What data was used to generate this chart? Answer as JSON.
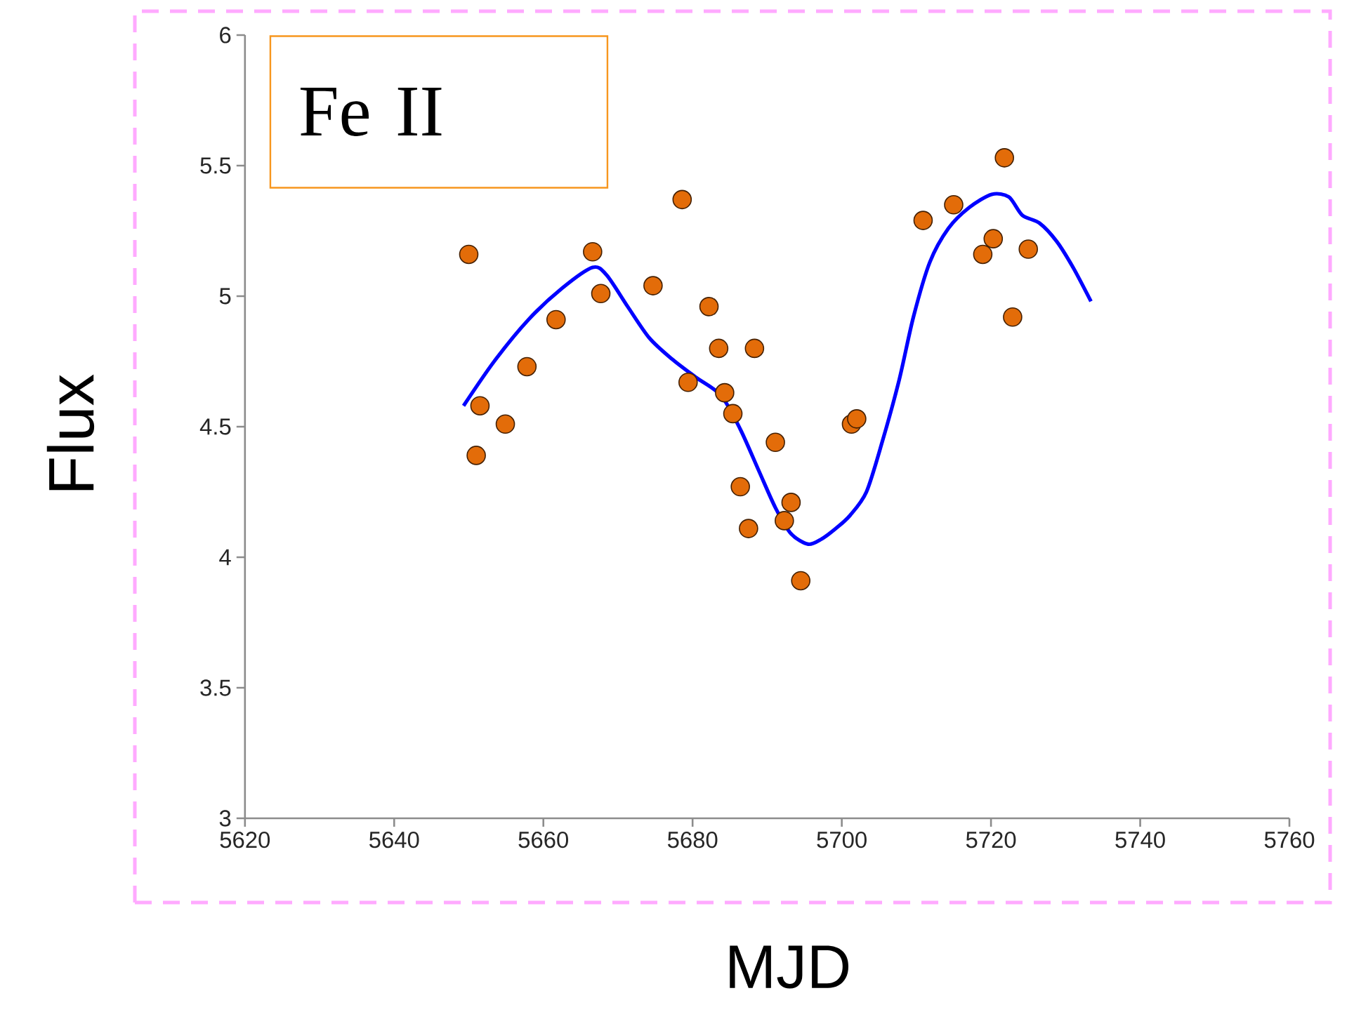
{
  "chart_data": {
    "type": "scatter",
    "xlabel": "MJD",
    "ylabel": "Flux",
    "annotations": [
      "Fe II"
    ],
    "xlim": [
      5620,
      5760
    ],
    "xticks": [
      5620,
      5640,
      5660,
      5680,
      5700,
      5720,
      5740,
      5760
    ],
    "ylim": [
      3,
      6
    ],
    "yticks": [
      3,
      3.5,
      4,
      4.5,
      5,
      5.5,
      6
    ],
    "series": [
      {
        "marker": "circle",
        "color": "#e36c09",
        "x": [
          5650,
          5651.5,
          5651,
          5654.9,
          5657.8,
          5661.7,
          5666.6,
          5667.7,
          5674.7,
          5678.6,
          5679.4,
          5682.2,
          5683.5,
          5684.3,
          5685.4,
          5686.4,
          5687.5,
          5688.3,
          5691.1,
          5692.3,
          5693.2,
          5694.5,
          5701.3,
          5702,
          5710.9,
          5715,
          5718.9,
          5720.3,
          5721.8,
          5722.9,
          5725
        ],
        "values": [
          5.16,
          4.58,
          4.39,
          4.51,
          4.73,
          4.91,
          5.17,
          5.01,
          5.04,
          5.37,
          4.67,
          4.96,
          4.8,
          4.63,
          4.55,
          4.27,
          4.11,
          4.8,
          4.44,
          4.14,
          4.21,
          3.91,
          4.51,
          4.53,
          5.29,
          5.35,
          5.16,
          5.22,
          5.53,
          4.92,
          5.18
        ]
      },
      {
        "type": "line",
        "marker": "none",
        "color": "#0000ff",
        "x": [
          5649.3,
          5653.4,
          5658,
          5662.5,
          5666.6,
          5668.5,
          5671.3,
          5674.2,
          5677.2,
          5680.4,
          5683.8,
          5686.4,
          5688.9,
          5691.1,
          5693.2,
          5695.5,
          5697.3,
          5699.2,
          5701.1,
          5703.3,
          5705.4,
          5707.7,
          5709.6,
          5711.8,
          5714.3,
          5717.1,
          5720.1,
          5722.4,
          5724.2,
          5726.5,
          5728.8,
          5731,
          5733.4
        ],
        "values": [
          4.58,
          4.75,
          4.91,
          5.03,
          5.11,
          5.08,
          4.96,
          4.84,
          4.76,
          4.69,
          4.62,
          4.49,
          4.33,
          4.19,
          4.09,
          4.05,
          4.07,
          4.11,
          4.16,
          4.25,
          4.44,
          4.68,
          4.92,
          5.13,
          5.26,
          5.34,
          5.39,
          5.38,
          5.31,
          5.28,
          5.21,
          5.11,
          4.98
        ]
      }
    ]
  }
}
